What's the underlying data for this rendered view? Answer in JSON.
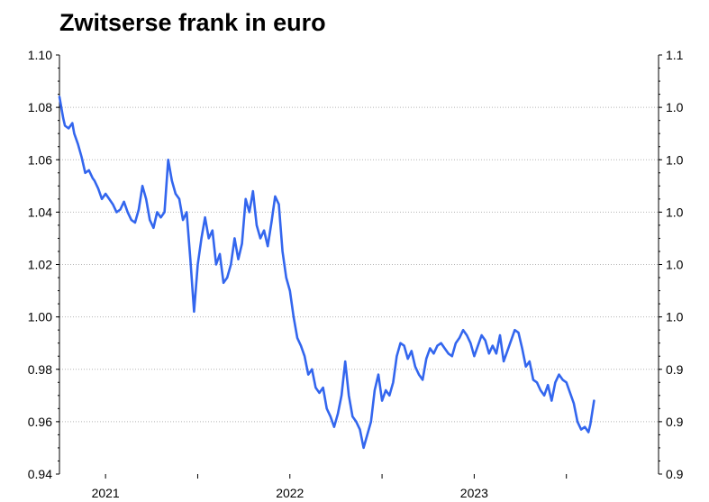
{
  "chart_data": {
    "type": "line",
    "title": "Zwitserse frank in euro",
    "xlabel": "",
    "ylabel": "",
    "ylim": [
      0.94,
      1.1
    ],
    "y_ticks": [
      "0.94",
      "0.96",
      "0.98",
      "1.00",
      "1.02",
      "1.04",
      "1.06",
      "1.08",
      "1.10"
    ],
    "y_ticks_right": [
      "0.9",
      "0.9",
      "0.9",
      "1.0",
      "1.0",
      "1.0",
      "1.0",
      "1.0",
      "1.1"
    ],
    "x_ticks": [
      {
        "label": "2021",
        "x": 2021.0
      },
      {
        "label": "2022",
        "x": 2022.0
      },
      {
        "label": "2023",
        "x": 2023.0
      }
    ],
    "xlim": [
      2020.75,
      2024.0
    ],
    "grid": true,
    "line_color": "#3366ee",
    "series": [
      {
        "x": [
          2020.75,
          2020.77,
          2020.78,
          2020.8,
          2020.82,
          2020.83,
          2020.85,
          2020.87,
          2020.89,
          2020.91,
          2020.93,
          2020.94,
          2020.96,
          2020.98,
          2021.0,
          2021.02,
          2021.04,
          2021.06,
          2021.08,
          2021.1,
          2021.12,
          2021.14,
          2021.16,
          2021.18,
          2021.2,
          2021.22,
          2021.24,
          2021.26,
          2021.28,
          2021.3,
          2021.32,
          2021.34,
          2021.36,
          2021.38,
          2021.4,
          2021.42,
          2021.44,
          2021.46,
          2021.48,
          2021.5,
          2021.52,
          2021.54,
          2021.56,
          2021.58,
          2021.6,
          2021.62,
          2021.64,
          2021.66,
          2021.68,
          2021.7,
          2021.72,
          2021.74,
          2021.76,
          2021.78,
          2021.8,
          2021.82,
          2021.84,
          2021.86,
          2021.88,
          2021.9,
          2021.92,
          2021.94,
          2021.96,
          2021.98,
          2022.0,
          2022.02,
          2022.04,
          2022.06,
          2022.08,
          2022.1,
          2022.12,
          2022.14,
          2022.16,
          2022.18,
          2022.2,
          2022.22,
          2022.24,
          2022.26,
          2022.28,
          2022.3,
          2022.32,
          2022.34,
          2022.36,
          2022.38,
          2022.4,
          2022.42,
          2022.44,
          2022.46,
          2022.48,
          2022.5,
          2022.52,
          2022.54,
          2022.56,
          2022.58,
          2022.6,
          2022.62,
          2022.64,
          2022.66,
          2022.68,
          2022.7,
          2022.72,
          2022.74,
          2022.76,
          2022.78,
          2022.8,
          2022.82,
          2022.84,
          2022.86,
          2022.88,
          2022.9,
          2022.92,
          2022.94,
          2022.96,
          2022.98,
          2023.0,
          2023.02,
          2023.04,
          2023.06,
          2023.08,
          2023.1,
          2023.12,
          2023.14,
          2023.16,
          2023.18,
          2023.2,
          2023.22,
          2023.24,
          2023.26,
          2023.28,
          2023.3,
          2023.32,
          2023.34,
          2023.36,
          2023.38,
          2023.4,
          2023.42,
          2023.44,
          2023.46,
          2023.48,
          2023.5,
          2023.52,
          2023.54,
          2023.56,
          2023.58,
          2023.6,
          2023.62,
          2023.63,
          2023.65
        ],
        "y": [
          1.084,
          1.076,
          1.073,
          1.072,
          1.074,
          1.07,
          1.066,
          1.061,
          1.055,
          1.056,
          1.053,
          1.052,
          1.049,
          1.045,
          1.047,
          1.045,
          1.043,
          1.04,
          1.041,
          1.044,
          1.04,
          1.037,
          1.036,
          1.041,
          1.05,
          1.045,
          1.037,
          1.034,
          1.04,
          1.038,
          1.04,
          1.06,
          1.052,
          1.047,
          1.045,
          1.037,
          1.04,
          1.022,
          1.002,
          1.02,
          1.03,
          1.038,
          1.03,
          1.033,
          1.02,
          1.024,
          1.013,
          1.015,
          1.02,
          1.03,
          1.022,
          1.028,
          1.045,
          1.04,
          1.048,
          1.035,
          1.03,
          1.033,
          1.027,
          1.036,
          1.046,
          1.043,
          1.025,
          1.015,
          1.01,
          1.0,
          0.992,
          0.989,
          0.985,
          0.978,
          0.98,
          0.973,
          0.971,
          0.973,
          0.965,
          0.962,
          0.958,
          0.963,
          0.97,
          0.983,
          0.97,
          0.962,
          0.96,
          0.957,
          0.95,
          0.955,
          0.96,
          0.972,
          0.978,
          0.968,
          0.972,
          0.97,
          0.975,
          0.985,
          0.99,
          0.989,
          0.984,
          0.987,
          0.981,
          0.978,
          0.976,
          0.984,
          0.988,
          0.986,
          0.989,
          0.99,
          0.988,
          0.986,
          0.985,
          0.99,
          0.992,
          0.995,
          0.993,
          0.99,
          0.985,
          0.989,
          0.993,
          0.991,
          0.986,
          0.989,
          0.986,
          0.993,
          0.983,
          0.987,
          0.991,
          0.995,
          0.994,
          0.988,
          0.981,
          0.983,
          0.976,
          0.975,
          0.972,
          0.97,
          0.974,
          0.968,
          0.975,
          0.978,
          0.976,
          0.975,
          0.971,
          0.967,
          0.96,
          0.957,
          0.958,
          0.956,
          0.959,
          0.968
        ]
      }
    ]
  }
}
